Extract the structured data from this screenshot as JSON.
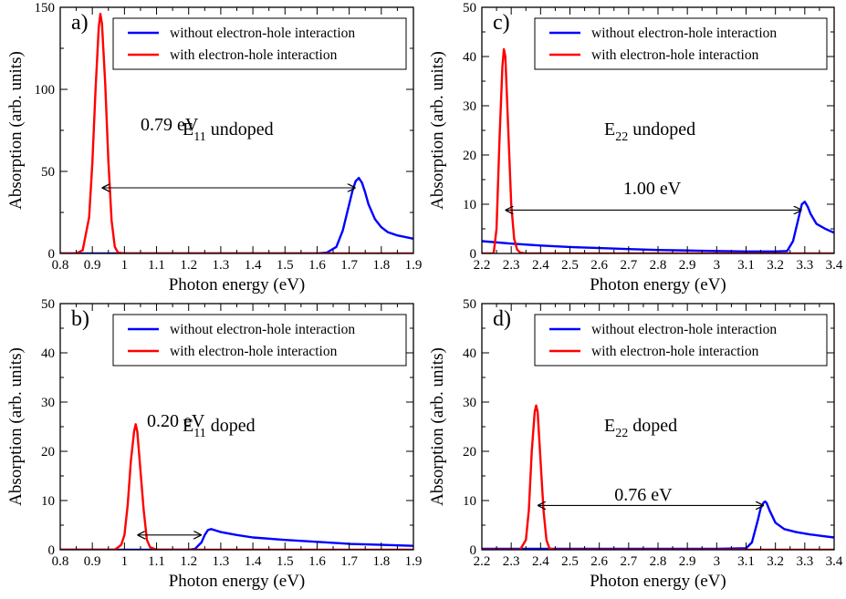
{
  "chart_data": [
    {
      "type": "line",
      "panel_label": "a)",
      "xlabel": "Photon energy (eV)",
      "ylabel": "Absorption (arb. units)",
      "xlim": [
        0.8,
        1.9
      ],
      "ylim": [
        0,
        150
      ],
      "xticks": [
        "0.8",
        "0.9",
        "1",
        "1.1",
        "1.2",
        "1.3",
        "1.4",
        "1.5",
        "1.6",
        "1.7",
        "1.8",
        "1.9"
      ],
      "yticks": [
        "0",
        "50",
        "100",
        "150"
      ],
      "legend": {
        "position": "top-right"
      },
      "series": [
        {
          "name": "without electron-hole interaction",
          "color": "#0000ff",
          "x": [
            0.8,
            1.0,
            1.2,
            1.4,
            1.6,
            1.63,
            1.66,
            1.68,
            1.7,
            1.71,
            1.72,
            1.73,
            1.74,
            1.75,
            1.76,
            1.78,
            1.8,
            1.82,
            1.85,
            1.9
          ],
          "y": [
            0,
            0,
            0,
            0,
            0,
            0.5,
            4,
            14,
            30,
            38,
            44,
            46,
            43,
            37,
            30,
            21,
            16,
            13,
            11,
            9
          ]
        },
        {
          "name": "with electron-hole interaction",
          "color": "#ff0000",
          "x": [
            0.8,
            0.85,
            0.87,
            0.89,
            0.9,
            0.91,
            0.92,
            0.925,
            0.93,
            0.94,
            0.95,
            0.96,
            0.97,
            0.98,
            1.0,
            1.9
          ],
          "y": [
            0,
            0,
            2,
            22,
            55,
            100,
            138,
            146,
            140,
            104,
            56,
            20,
            4,
            0.5,
            0,
            0
          ]
        }
      ],
      "annotation": {
        "main": "E",
        "sub": "11",
        "suffix": " undoped",
        "gap_label": "0.79 eV",
        "arrow_x": [
          0.93,
          1.72
        ],
        "arrow_y": 40,
        "label_x": 1.14,
        "label_y": 75
      }
    },
    {
      "type": "line",
      "panel_label": "b)",
      "xlabel": "Photon energy (eV)",
      "ylabel": "Absorption (arb. units)",
      "xlim": [
        0.8,
        1.9
      ],
      "ylim": [
        0,
        50
      ],
      "xticks": [
        "0.8",
        "0.9",
        "1",
        "1.1",
        "1.2",
        "1.3",
        "1.4",
        "1.5",
        "1.6",
        "1.7",
        "1.8",
        "1.9"
      ],
      "yticks": [
        "0",
        "10",
        "20",
        "30",
        "40",
        "50"
      ],
      "legend": {
        "position": "top-right"
      },
      "series": [
        {
          "name": "without electron-hole interaction",
          "color": "#0000ff",
          "x": [
            0.8,
            1.0,
            1.2,
            1.22,
            1.24,
            1.25,
            1.26,
            1.27,
            1.28,
            1.3,
            1.35,
            1.4,
            1.5,
            1.6,
            1.7,
            1.8,
            1.9
          ],
          "y": [
            0,
            0,
            0,
            0.2,
            1.5,
            3,
            4,
            4.2,
            4,
            3.6,
            3,
            2.5,
            2,
            1.6,
            1.2,
            1,
            0.8
          ]
        },
        {
          "name": "with electron-hole interaction",
          "color": "#ff0000",
          "x": [
            0.8,
            0.97,
            0.99,
            1.0,
            1.01,
            1.02,
            1.03,
            1.035,
            1.04,
            1.05,
            1.06,
            1.07,
            1.08,
            1.1,
            1.9
          ],
          "y": [
            0,
            0,
            1,
            3,
            9,
            18,
            24,
            25.5,
            24,
            16,
            8,
            2,
            0.5,
            0,
            0
          ]
        }
      ],
      "annotation": {
        "main": "E",
        "sub": "11",
        "suffix": " doped",
        "gap_label": "0.20 eV",
        "arrow_x": [
          1.04,
          1.24
        ],
        "arrow_y": 3,
        "label_x": 1.16,
        "label_y": 25
      }
    },
    {
      "type": "line",
      "panel_label": "c)",
      "xlabel": "Photon energy (eV)",
      "ylabel": "Absorption (arb. units)",
      "xlim": [
        2.2,
        3.4
      ],
      "ylim": [
        0,
        50
      ],
      "xticks": [
        "2.2",
        "2.3",
        "2.4",
        "2.5",
        "2.6",
        "2.7",
        "2.8",
        "2.9",
        "3",
        "3.1",
        "3.2",
        "3.3",
        "3.4"
      ],
      "yticks": [
        "0",
        "10",
        "20",
        "30",
        "40",
        "50"
      ],
      "legend": {
        "position": "top-right"
      },
      "series": [
        {
          "name": "without electron-hole interaction",
          "color": "#0000ff",
          "x": [
            2.2,
            2.3,
            2.4,
            2.5,
            2.6,
            2.7,
            2.8,
            2.9,
            3.0,
            3.1,
            3.2,
            3.24,
            3.26,
            3.28,
            3.29,
            3.3,
            3.31,
            3.32,
            3.34,
            3.37,
            3.4
          ],
          "y": [
            2.5,
            2,
            1.6,
            1.3,
            1.1,
            0.9,
            0.7,
            0.6,
            0.5,
            0.4,
            0.4,
            0.5,
            2.5,
            7.5,
            10,
            10.5,
            9.5,
            8,
            6,
            5,
            4.2
          ]
        },
        {
          "name": "with electron-hole interaction",
          "color": "#ff0000",
          "x": [
            2.2,
            2.24,
            2.25,
            2.26,
            2.27,
            2.275,
            2.28,
            2.29,
            2.3,
            2.31,
            2.32,
            2.33,
            2.35,
            3.4
          ],
          "y": [
            0,
            0,
            5,
            23,
            38,
            41.5,
            40,
            25,
            10,
            3,
            0.8,
            0.2,
            0,
            0
          ]
        }
      ],
      "annotation": {
        "main": "E",
        "sub": "22",
        "suffix": " undoped",
        "gap_label": "1.00 eV",
        "arrow_x": [
          2.28,
          3.29
        ],
        "arrow_y": 8.8,
        "label_x": 2.78,
        "label_y": 12
      }
    },
    {
      "type": "line",
      "panel_label": "d)",
      "xlabel": "Photon energy (eV)",
      "ylabel": "Absorption (arb. units)",
      "xlim": [
        2.2,
        3.4
      ],
      "ylim": [
        0,
        50
      ],
      "xticks": [
        "2.2",
        "2.3",
        "2.4",
        "2.5",
        "2.6",
        "2.7",
        "2.8",
        "2.9",
        "3",
        "3.1",
        "3.2",
        "3.3",
        "3.4"
      ],
      "yticks": [
        "0",
        "10",
        "20",
        "30",
        "40",
        "50"
      ],
      "legend": {
        "position": "top-right"
      },
      "series": [
        {
          "name": "without electron-hole interaction",
          "color": "#0000ff",
          "x": [
            2.2,
            2.5,
            2.8,
            3.0,
            3.1,
            3.12,
            3.14,
            3.15,
            3.16,
            3.165,
            3.17,
            3.18,
            3.2,
            3.23,
            3.27,
            3.32,
            3.36,
            3.4
          ],
          "y": [
            0.2,
            0.2,
            0.2,
            0.2,
            0.3,
            1.5,
            6,
            8.5,
            9.6,
            9.8,
            9.5,
            8,
            5.5,
            4.2,
            3.6,
            3.1,
            2.8,
            2.5
          ]
        },
        {
          "name": "with electron-hole interaction",
          "color": "#ff0000",
          "x": [
            2.2,
            2.33,
            2.35,
            2.36,
            2.37,
            2.38,
            2.385,
            2.39,
            2.4,
            2.41,
            2.42,
            2.43,
            2.45,
            3.4
          ],
          "y": [
            0,
            0,
            2,
            8,
            20,
            28,
            29.3,
            28,
            18,
            8,
            2,
            0.3,
            0,
            0
          ]
        }
      ],
      "annotation": {
        "main": "E",
        "sub": "22",
        "suffix": " doped",
        "gap_label": "0.76 eV",
        "arrow_x": [
          2.39,
          3.16
        ],
        "arrow_y": 9,
        "label_x": 2.75,
        "label_y": 10
      }
    }
  ]
}
